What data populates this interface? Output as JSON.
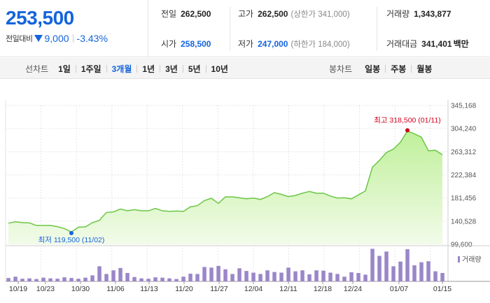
{
  "summary": {
    "current_price": "253,500",
    "change_label": "전일대비",
    "change_value": "9,000",
    "change_rate": "-3.43%"
  },
  "stats": {
    "prev_close": {
      "label": "전일",
      "value": "262,500"
    },
    "open": {
      "label": "시가",
      "value": "258,500"
    },
    "high": {
      "label": "고가",
      "value": "262,500",
      "sub": "(상한가 341,000)"
    },
    "low": {
      "label": "저가",
      "value": "247,000",
      "sub": "(하한가 184,000)"
    },
    "volume": {
      "label": "거래량",
      "value": "1,343,877"
    },
    "amount": {
      "label": "거래대금",
      "value": "341,401",
      "unit": "백만"
    }
  },
  "line_tabs": {
    "title": "선차트",
    "items": [
      "1일",
      "1주일",
      "3개월",
      "1년",
      "3년",
      "5년",
      "10년"
    ],
    "selected": "3개월"
  },
  "candle_tabs": {
    "title": "봉차트",
    "items": [
      "일봉",
      "주봉",
      "월봉"
    ]
  },
  "colors": {
    "accent_blue": "#1464dc",
    "line_green": "#6cc644",
    "fill_green": "#c9f0a8",
    "volume_purple": "#9b86c9",
    "high_red": "#d0021b"
  },
  "chart_data": {
    "type": "area",
    "price_ticks": [
      "345,168",
      "304,240",
      "263,312",
      "222,384",
      "181,456",
      "140,528",
      "99,600"
    ],
    "ylim": [
      99600,
      345168
    ],
    "x_ticks": [
      "10/19",
      "10/23",
      "10/30",
      "11/06",
      "11/13",
      "11/20",
      "11/27",
      "12/04",
      "12/11",
      "12/18",
      "12/24",
      "01/07",
      "01/15"
    ],
    "prices": [
      137000,
      139500,
      138000,
      137500,
      133000,
      133000,
      133000,
      131000,
      127500,
      121500,
      130000,
      130500,
      138000,
      142000,
      156000,
      157000,
      162000,
      159000,
      161000,
      159000,
      159000,
      163000,
      159000,
      158000,
      158500,
      158000,
      166000,
      168000,
      177000,
      181000,
      172000,
      183500,
      183500,
      182000,
      180000,
      181500,
      179000,
      184000,
      191000,
      188000,
      184000,
      186000,
      190000,
      193000,
      190000,
      190000,
      185000,
      181500,
      182000,
      180000,
      187000,
      194000,
      236000,
      248000,
      262000,
      268000,
      280000,
      300000,
      295000,
      289000,
      265000,
      266000,
      258000
    ],
    "volume": [
      0.1,
      0.14,
      0.08,
      0.09,
      0.07,
      0.11,
      0.09,
      0.08,
      0.12,
      0.1,
      0.08,
      0.11,
      0.18,
      0.45,
      0.22,
      0.33,
      0.4,
      0.25,
      0.13,
      0.09,
      0.08,
      0.12,
      0.11,
      0.09,
      0.07,
      0.14,
      0.23,
      0.22,
      0.43,
      0.41,
      0.46,
      0.36,
      0.22,
      0.39,
      0.31,
      0.26,
      0.22,
      0.33,
      0.28,
      0.26,
      0.41,
      0.3,
      0.33,
      0.21,
      0.33,
      0.32,
      0.26,
      0.22,
      0.14,
      0.27,
      0.25,
      0.2,
      0.97,
      0.76,
      0.89,
      0.45,
      0.59,
      0.96,
      0.48,
      0.57,
      0.6,
      0.3,
      0.25
    ],
    "volume_legend": "거래량",
    "high_label": "최고 318,500 (01/11)",
    "low_label": "최저 119,500 (11/02)",
    "high_value": 318500,
    "low_value": 119500,
    "high_index": 57,
    "low_index": 9
  }
}
